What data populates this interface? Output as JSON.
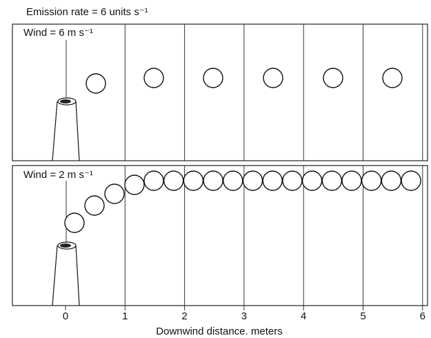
{
  "title": "Emission rate = 6 units s⁻¹",
  "panels": [
    {
      "label": "Wind = 6 m s⁻¹"
    },
    {
      "label": "Wind = 2 m s⁻¹"
    }
  ],
  "axis": {
    "ticks": [
      0,
      1,
      2,
      3,
      4,
      5,
      6
    ],
    "label": "Downwind distance. meters"
  }
}
